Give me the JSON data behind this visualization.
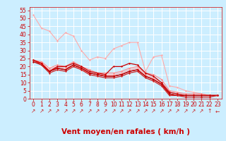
{
  "background_color": "#cceeff",
  "grid_color": "#ffffff",
  "xlabel": "Vent moyen/en rafales ( km/h )",
  "tick_color": "#cc0000",
  "ylabel_ticks": [
    0,
    5,
    10,
    15,
    20,
    25,
    30,
    35,
    40,
    45,
    50,
    55
  ],
  "xlim": [
    -0.5,
    23.5
  ],
  "ylim": [
    0,
    57
  ],
  "x_ticks": [
    0,
    1,
    2,
    3,
    4,
    5,
    6,
    7,
    8,
    9,
    10,
    11,
    12,
    13,
    14,
    15,
    16,
    17,
    18,
    19,
    20,
    21,
    22,
    23
  ],
  "lines_light": [
    {
      "x": [
        0,
        1,
        2,
        3,
        4,
        5,
        6,
        7,
        8,
        9,
        10,
        11,
        12,
        13,
        14,
        15,
        16,
        17,
        18,
        19,
        20,
        21,
        22,
        23
      ],
      "y": [
        52,
        44,
        42,
        36,
        41,
        39,
        30,
        24,
        26,
        25,
        31,
        33,
        35,
        35,
        17,
        26,
        27,
        8,
        7,
        5,
        4,
        3,
        2,
        2
      ],
      "color": "#ffaaaa",
      "lw": 0.8,
      "marker": "D",
      "ms": 1.5,
      "zorder": 2
    },
    {
      "x": [
        0,
        1,
        2,
        3,
        4,
        5,
        6,
        7,
        8,
        9,
        10,
        11,
        12,
        13,
        14,
        15,
        16,
        17,
        18,
        19,
        20,
        21,
        22,
        23
      ],
      "y": [
        24,
        23,
        19,
        21,
        20,
        23,
        20,
        18,
        16,
        16,
        16,
        17,
        19,
        20,
        16,
        15,
        12,
        5,
        4,
        3,
        3,
        3,
        2,
        2
      ],
      "color": "#ff8888",
      "lw": 0.8,
      "marker": "D",
      "ms": 1.5,
      "zorder": 2
    },
    {
      "x": [
        0,
        1,
        2,
        3,
        4,
        5,
        6,
        7,
        8,
        9,
        10,
        11,
        12,
        13,
        14,
        15,
        16,
        17,
        18,
        19,
        20,
        21,
        22,
        23
      ],
      "y": [
        24,
        22,
        18,
        20,
        19,
        21,
        18,
        16,
        15,
        15,
        15,
        16,
        18,
        19,
        15,
        13,
        10,
        4,
        3,
        2,
        2,
        2,
        2,
        2
      ],
      "color": "#ffaaaa",
      "lw": 0.8,
      "marker": "D",
      "ms": 1.5,
      "zorder": 2
    }
  ],
  "lines_dark": [
    {
      "x": [
        0,
        1,
        2,
        3,
        4,
        5,
        6,
        7,
        8,
        9,
        10,
        11,
        12,
        13,
        14,
        15,
        16,
        17,
        18,
        19,
        20,
        21,
        22,
        23
      ],
      "y": [
        24,
        22,
        17,
        20,
        20,
        22,
        20,
        17,
        16,
        15,
        20,
        20,
        22,
        21,
        16,
        14,
        10,
        4,
        3,
        2,
        2,
        2,
        2,
        2
      ],
      "color": "#cc0000",
      "lw": 0.9,
      "marker": "D",
      "ms": 1.5,
      "zorder": 3
    },
    {
      "x": [
        0,
        1,
        2,
        3,
        4,
        5,
        6,
        7,
        8,
        9,
        10,
        11,
        12,
        13,
        14,
        15,
        16,
        17,
        18,
        19,
        20,
        21,
        22,
        23
      ],
      "y": [
        24,
        22,
        17,
        19,
        18,
        21,
        19,
        16,
        15,
        14,
        14,
        15,
        17,
        18,
        14,
        12,
        9,
        3,
        2,
        2,
        2,
        2,
        2,
        2
      ],
      "color": "#dd0000",
      "lw": 0.9,
      "marker": "D",
      "ms": 1.5,
      "zorder": 3
    },
    {
      "x": [
        0,
        1,
        2,
        3,
        4,
        5,
        6,
        7,
        8,
        9,
        10,
        11,
        12,
        13,
        14,
        15,
        16,
        17,
        18,
        19,
        20,
        21,
        22,
        23
      ],
      "y": [
        23,
        21,
        17,
        19,
        18,
        21,
        19,
        16,
        15,
        14,
        14,
        15,
        17,
        18,
        14,
        12,
        9,
        3,
        2,
        2,
        2,
        2,
        2,
        2
      ],
      "color": "#bb0000",
      "lw": 0.9,
      "marker": "D",
      "ms": 1.5,
      "zorder": 3
    },
    {
      "x": [
        0,
        1,
        2,
        3,
        4,
        5,
        6,
        7,
        8,
        9,
        10,
        11,
        12,
        13,
        14,
        15,
        16,
        17,
        18,
        19,
        20,
        21,
        22,
        23
      ],
      "y": [
        24,
        21,
        16,
        18,
        17,
        20,
        18,
        15,
        14,
        13,
        13,
        14,
        16,
        17,
        13,
        11,
        8,
        2,
        2,
        1,
        1,
        1,
        1,
        2
      ],
      "color": "#cc2222",
      "lw": 0.9,
      "marker": "D",
      "ms": 1.5,
      "zorder": 3
    }
  ],
  "arrows": [
    "↗",
    "↗",
    "↗",
    "↗",
    "↗",
    "↗",
    "↗",
    "↗",
    "↗",
    "↗",
    "↗",
    "↗",
    "↗",
    "↗",
    "↗",
    "↗",
    "↗",
    "↗",
    "↗",
    "↗",
    "↗",
    "↗",
    "↑",
    "←"
  ],
  "arrow_color": "#cc2222",
  "tick_fontsize": 5.5,
  "xlabel_fontsize": 7.5
}
